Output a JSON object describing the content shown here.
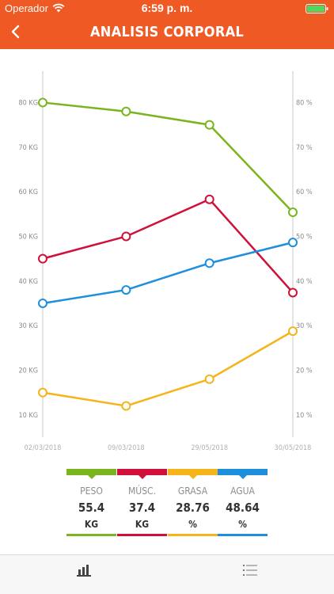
{
  "status_bar": {
    "carrier": "Operador",
    "time": "6:59 p. m.",
    "wifi_icon": "wifi-icon",
    "battery_icon": "battery-full-icon",
    "battery_color": "#4cd964"
  },
  "nav": {
    "title": "ANALISIS CORPORAL",
    "back_icon": "chevron-left-icon",
    "background": "#ef5a24"
  },
  "chart_data": {
    "type": "line",
    "x": [
      "02/03/2018",
      "09/03/2018",
      "29/05/2018",
      "30/05/2018"
    ],
    "y_left": {
      "ticks": [
        "80 KG",
        "70 KG",
        "60 KG",
        "50 KG",
        "40 KG",
        "30 KG",
        "20 KG",
        "10 KG"
      ],
      "range": [
        5,
        87
      ],
      "tick_values": [
        80,
        70,
        60,
        50,
        40,
        30,
        20,
        10
      ]
    },
    "y_right": {
      "ticks": [
        "80 %",
        "70 %",
        "60 %",
        "50 %",
        "40 %",
        "30 %",
        "20 %",
        "10 %"
      ],
      "range": [
        5,
        87
      ],
      "tick_values": [
        80,
        70,
        60,
        50,
        40,
        30,
        20,
        10
      ]
    },
    "grid": false,
    "series": [
      {
        "name": "PESO",
        "color": "#7ab51d",
        "values": [
          80,
          78,
          75,
          55.4
        ]
      },
      {
        "name": "MÚSC.",
        "color": "#d0103a",
        "values": [
          45,
          50,
          58.3,
          37.4
        ]
      },
      {
        "name": "GRASA",
        "color": "#f5b41a",
        "values": [
          15,
          12,
          18,
          28.76
        ]
      },
      {
        "name": "AGUA",
        "color": "#1d8fdc",
        "values": [
          35,
          38,
          44,
          48.64
        ]
      }
    ]
  },
  "legend": [
    {
      "label": "PESO",
      "value": "55.4",
      "unit": "KG",
      "color": "#7ab51d"
    },
    {
      "label": "MÚSC.",
      "value": "37.4",
      "unit": "KG",
      "color": "#d0103a"
    },
    {
      "label": "GRASA",
      "value": "28.76",
      "unit": "%",
      "color": "#f5b41a"
    },
    {
      "label": "AGUA",
      "value": "48.64",
      "unit": "%",
      "color": "#1d8fdc"
    }
  ],
  "tab_bar": {
    "tabs": [
      {
        "icon": "bar-chart-icon",
        "active": true
      },
      {
        "icon": "list-icon",
        "active": false
      }
    ]
  }
}
